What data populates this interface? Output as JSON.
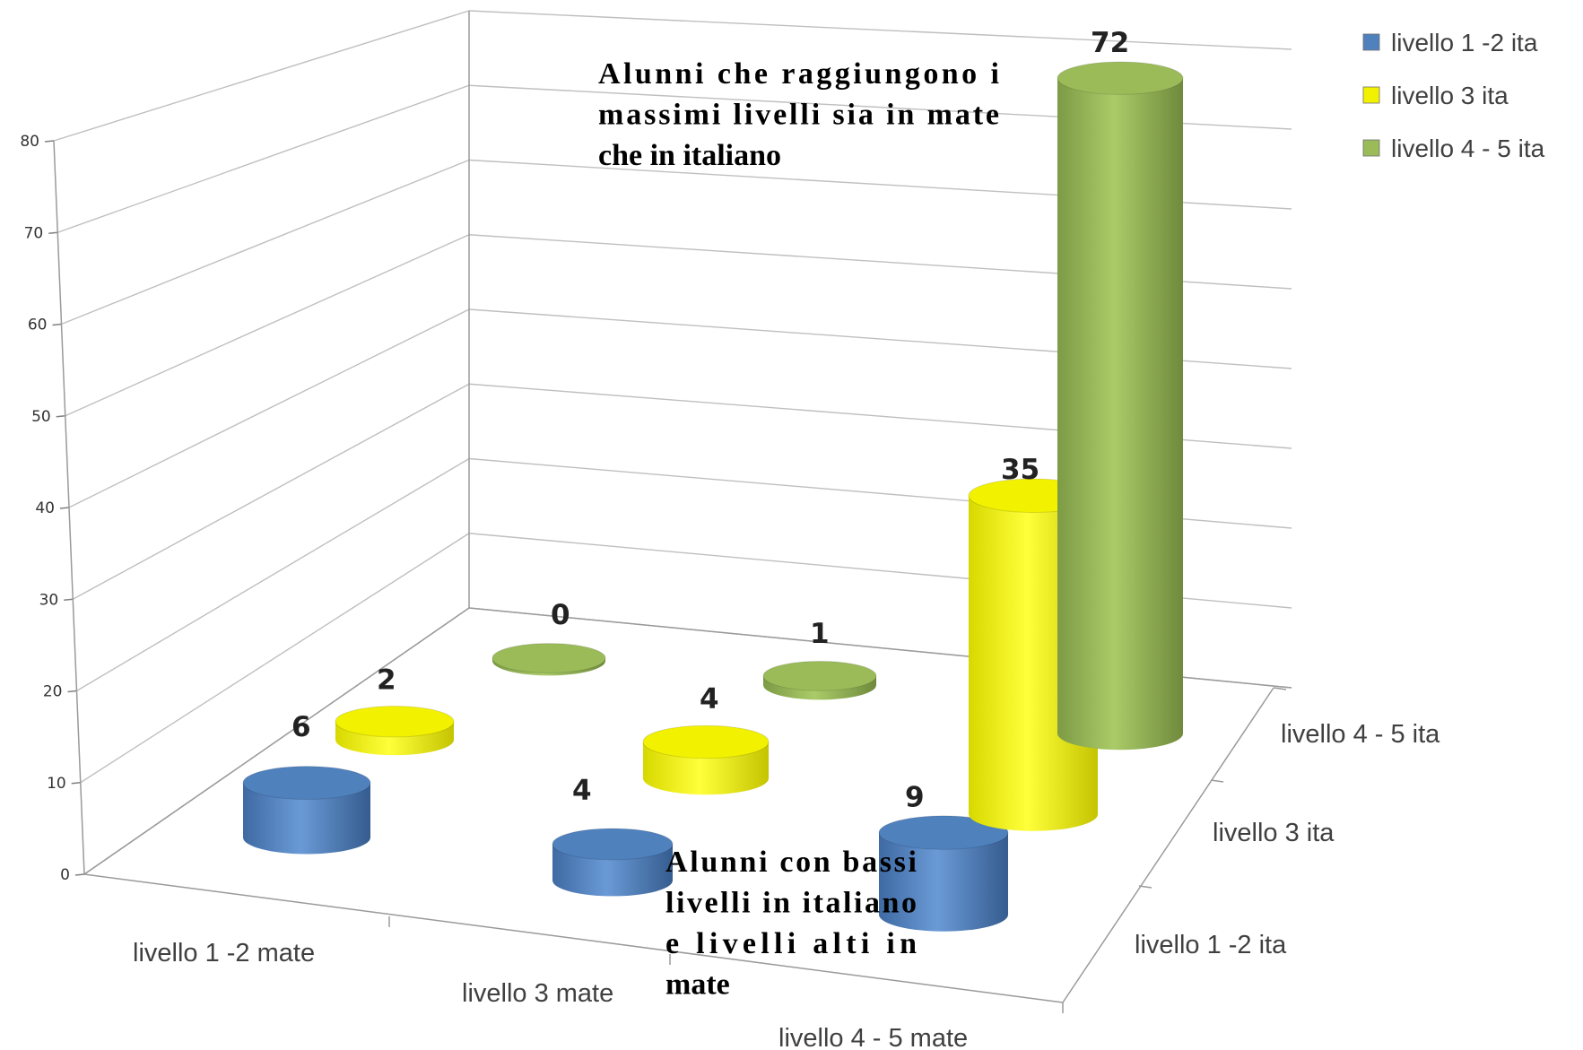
{
  "chart_data": {
    "type": "bar",
    "style": "3d-cylinder",
    "categories": [
      "livello 1 -2 mate",
      "livello 3 mate",
      "livello 4 - 5 mate"
    ],
    "depth_categories": [
      "livello 1 -2 ita",
      "livello 3 ita",
      "livello 4 - 5 ita"
    ],
    "series": [
      {
        "name": "livello 1 -2 ita",
        "values": [
          6,
          4,
          9
        ],
        "color": "#4f81bd"
      },
      {
        "name": "livello 3 ita",
        "values": [
          2,
          4,
          35
        ],
        "color": "#f2f200"
      },
      {
        "name": "livello 4 - 5 ita",
        "values": [
          0,
          1,
          72
        ],
        "color": "#9bbb59"
      }
    ],
    "ylim": [
      0,
      80
    ],
    "yticks": [
      "0",
      "10",
      "20",
      "30",
      "40",
      "50",
      "60",
      "70",
      "80"
    ],
    "grid": true,
    "legend_position": "top-right",
    "annotations": [
      {
        "id": "top",
        "lines": [
          "Alunni che raggiungono i",
          "massimi livelli sia in mate",
          "che in italiano"
        ]
      },
      {
        "id": "bottom",
        "lines": [
          "Alunni con bassi",
          "livelli in italiano",
          "e livelli alti in",
          "mate"
        ]
      }
    ]
  }
}
